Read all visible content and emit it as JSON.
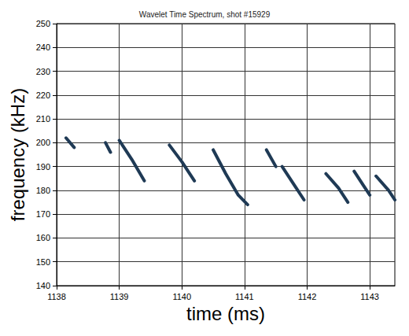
{
  "chart_data": {
    "type": "line",
    "title": "Wavelet Time Spectrum, shot #15929",
    "xlabel": "time (ms)",
    "ylabel": "frequency (kHz)",
    "x": [
      1138.15,
      1138.28,
      1138.5,
      1138.78,
      1138.86,
      1138.93,
      1139.0,
      1139.2,
      1139.4,
      1139.6,
      1139.8,
      1140.0,
      1140.2,
      1140.35,
      1140.5,
      1140.7,
      1140.9,
      1141.05,
      1141.2,
      1141.35,
      1141.5,
      1141.55,
      1141.6,
      1141.8,
      1141.95,
      1142.1,
      1142.3,
      1142.5,
      1142.65,
      1142.7,
      1142.75,
      1142.9,
      1143.0,
      1143.05,
      1143.1,
      1143.3,
      1143.4
    ],
    "values": [
      202,
      198,
      null,
      200,
      196,
      null,
      201,
      193,
      184,
      null,
      199,
      192,
      184,
      null,
      197,
      187,
      178,
      174,
      null,
      197,
      190,
      null,
      190,
      182,
      176,
      null,
      187,
      181,
      175,
      null,
      188,
      182,
      178,
      null,
      186,
      180,
      176
    ],
    "color": "#1f3a55",
    "xlim": [
      1138,
      1143.4
    ],
    "ylim": [
      140,
      250
    ],
    "xticks": [
      1138,
      1139,
      1140,
      1141,
      1142,
      1143
    ],
    "yticks": [
      140,
      150,
      160,
      170,
      180,
      190,
      200,
      210,
      220,
      230,
      240,
      250
    ],
    "grid": true
  }
}
